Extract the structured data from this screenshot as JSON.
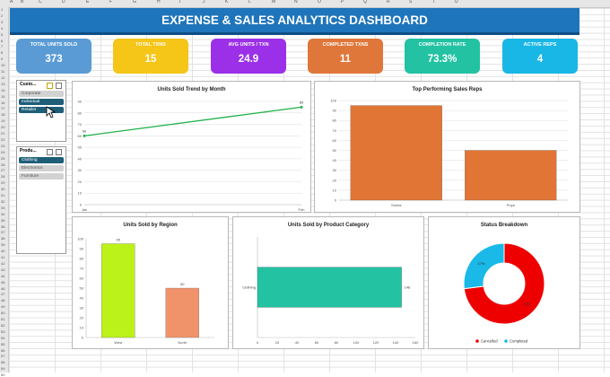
{
  "dashboard": {
    "title": "EXPENSE & SALES ANALYTICS DASHBOARD"
  },
  "spreadsheet": {
    "columns": [
      "A",
      "B",
      "C",
      "D",
      "E",
      "F",
      "G",
      "H",
      "I",
      "J",
      "K",
      "L",
      "M",
      "N",
      "O",
      "P",
      "Q",
      "R",
      "S",
      "T",
      "U"
    ],
    "rows": [
      "1",
      "2",
      "3",
      "4",
      "5",
      "6",
      "7",
      "8",
      "9",
      "10",
      "11",
      "12",
      "13",
      "14",
      "15",
      "16",
      "17",
      "18",
      "19",
      "20",
      "21",
      "22",
      "23",
      "24",
      "25",
      "26",
      "27",
      "28",
      "29",
      "30",
      "31",
      "32",
      "33",
      "34",
      "35",
      "36",
      "37",
      "38",
      "39",
      "40",
      "41",
      "42",
      "43",
      "44",
      "45",
      "46",
      "47",
      "48",
      "49",
      "50",
      "51",
      "52",
      "53",
      "54",
      "55",
      "56",
      "57",
      "58",
      "59",
      "60"
    ]
  },
  "kpis": [
    {
      "label": "TOTAL UNITS SOLD",
      "value": "373",
      "color": "#5a9bd5"
    },
    {
      "label": "TOTAL TXNS",
      "value": "15",
      "color": "#f5c518"
    },
    {
      "label": "AVG UNITS / TXN",
      "value": "24.9",
      "color": "#9b30e8"
    },
    {
      "label": "COMPLETED TXNS",
      "value": "11",
      "color": "#e0773a"
    },
    {
      "label": "COMPLETION RATE",
      "value": "73.3%",
      "color": "#22c2a3"
    },
    {
      "label": "ACTIVE REPS",
      "value": "4",
      "color": "#18b7e6"
    }
  ],
  "slicers": {
    "customer": {
      "header": "Custo...",
      "items": [
        {
          "label": "Corporate",
          "selected": false
        },
        {
          "label": "Individual",
          "selected": true
        },
        {
          "label": "Retailer",
          "selected": true
        }
      ]
    },
    "product": {
      "header": "Produ...",
      "items": [
        {
          "label": "Clothing",
          "selected": true
        },
        {
          "label": "Electronics",
          "selected": false
        },
        {
          "label": "Furniture",
          "selected": false
        }
      ]
    }
  },
  "chart_data": [
    {
      "type": "line",
      "title": "Units Sold Trend by Month",
      "categories": [
        "Jan",
        "Feb"
      ],
      "values": [
        60,
        85
      ],
      "data_labels": [
        "60",
        "85"
      ],
      "ylim": [
        0,
        90
      ],
      "yticks": [
        "0",
        "10",
        "20",
        "30",
        "40",
        "50",
        "60",
        "70",
        "80",
        "90"
      ],
      "color": "#1fb24a",
      "grid": true
    },
    {
      "type": "bar",
      "title": "Top Performing Sales Reps",
      "categories": [
        "Sneha",
        "Priya"
      ],
      "values": [
        95,
        50
      ],
      "ylim": [
        0,
        100
      ],
      "yticks": [
        "0",
        "10",
        "20",
        "30",
        "40",
        "50",
        "60",
        "70",
        "80",
        "90",
        "100"
      ],
      "color": "#e07535",
      "grid": true
    },
    {
      "type": "bar",
      "title": "Units Sold by Region",
      "categories": [
        "West",
        "North"
      ],
      "values": [
        95,
        50
      ],
      "data_labels": [
        "95",
        "50"
      ],
      "colors": [
        "#bbf21a",
        "#f0936b"
      ],
      "ylim": [
        0,
        100
      ],
      "yticks": [
        "0",
        "10",
        "20",
        "30",
        "40",
        "50",
        "60",
        "70",
        "80",
        "90",
        "100"
      ],
      "grid": false
    },
    {
      "type": "bar",
      "orientation": "horizontal",
      "title": "Units Sold by Product Category",
      "categories": [
        "Clothing"
      ],
      "values": [
        146
      ],
      "data_labels": [
        "146"
      ],
      "xlim": [
        0,
        160
      ],
      "xticks": [
        "0",
        "20",
        "40",
        "60",
        "80",
        "100",
        "120",
        "140",
        "160"
      ],
      "color": "#22c2a3",
      "grid": false
    },
    {
      "type": "pie",
      "donut": true,
      "title": "Status Breakdown",
      "categories": [
        "Cancelled",
        "Completed"
      ],
      "values": [
        73,
        27
      ],
      "data_labels": [
        "73%",
        "27%"
      ],
      "colors": [
        "#ee0000",
        "#1ab9e8"
      ],
      "legend": "bottom"
    }
  ]
}
